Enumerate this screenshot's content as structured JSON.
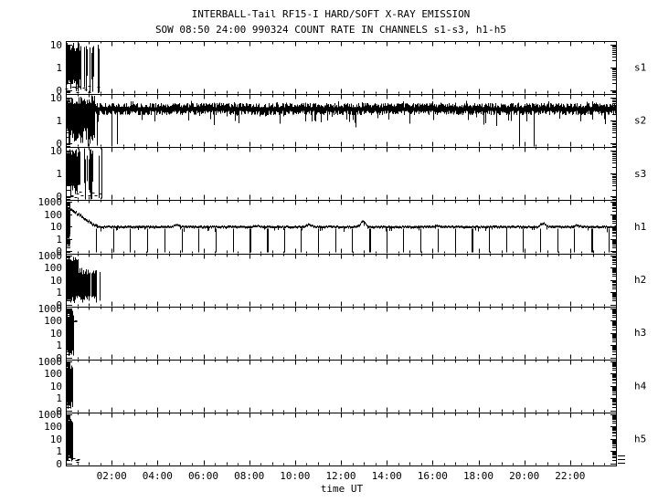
{
  "title": "INTERBALL-Tail RF15-I HARD/SOFT X-RAY EMISSION",
  "subtitle": "SOW 08:50 24:00 990324  COUNT RATE IN CHANNELS s1-s3, h1-h5",
  "colors": {
    "fg": "#000000",
    "bg": "#ffffff"
  },
  "chart_data": {
    "type": "line",
    "title": "INTERBALL-Tail RF15-I HARD/SOFT X-RAY EMISSION",
    "subtitle": "SOW 08:50 24:00 990324  COUNT RATE IN CHANNELS s1-s3, h1-h5",
    "y_scale": "log",
    "grid": false,
    "x": {
      "label": "time UT",
      "range_hours": [
        0,
        24
      ],
      "tick_hours": [
        2,
        4,
        6,
        8,
        10,
        12,
        14,
        16,
        18,
        20,
        22
      ],
      "tick_labels": [
        "02:00",
        "04:00",
        "06:00",
        "08:00",
        "10:00",
        "12:00",
        "14:00",
        "16:00",
        "18:00",
        "20:00",
        "22:00"
      ],
      "minor_tick_hours": 0.5
    },
    "panels": [
      {
        "channel": "s1",
        "group": "s",
        "seed": 11,
        "y_ticks": [
          {
            "v": 10,
            "label": "10"
          },
          {
            "v": 1,
            "label": "1"
          },
          {
            "v": 0.1,
            "label": "0"
          }
        ],
        "segments": [
          {
            "kind": "burst",
            "t0": 0,
            "t1": 0.62,
            "density": 1,
            "vtop": [
              5,
              14
            ],
            "vbot": [
              0.07,
              0.4
            ]
          },
          {
            "kind": "burst",
            "t0": 0.62,
            "t1": 0.78,
            "density": 0.25,
            "vtop": [
              5,
              14
            ],
            "vbot": [
              0.07,
              0.4
            ]
          },
          {
            "kind": "burst",
            "t0": 0.78,
            "t1": 1.25,
            "density": 0.72,
            "vtop": [
              4,
              14
            ],
            "vbot": [
              0.07,
              0.5
            ]
          },
          {
            "kind": "spikes",
            "t0": 1.25,
            "t1": 1.5,
            "n": 3,
            "vtop": [
              6,
              13
            ],
            "vbot": [
              0.07,
              0.2
            ]
          },
          {
            "kind": "marks",
            "t0": 0.05,
            "t1": 1.55,
            "n": 12,
            "v": 0.11
          }
        ]
      },
      {
        "channel": "s2",
        "group": "s",
        "seed": 22,
        "y_ticks": [
          {
            "v": 10,
            "label": "10"
          },
          {
            "v": 1,
            "label": "1"
          },
          {
            "v": 0.1,
            "label": "0"
          }
        ],
        "segments": [
          {
            "kind": "burst",
            "t0": 0,
            "t1": 1.28,
            "density": 0.9,
            "vtop": [
              5,
              13
            ],
            "vbot": [
              0.07,
              0.6
            ]
          },
          {
            "kind": "spikes",
            "t0": 1.3,
            "t1": 2.7,
            "n": 3,
            "vtop": [
              2.5,
              4
            ],
            "vbot": [
              0.07,
              0.12
            ]
          },
          {
            "kind": "band",
            "t0": 0,
            "t1": 24,
            "center": 3.2,
            "jit": 0.1,
            "thick": 0.17,
            "downrate": 0.12,
            "downdec": 0.55,
            "deeprate": 0.004,
            "uprate": 0.08,
            "updec": 0.12
          }
        ]
      },
      {
        "channel": "s3",
        "group": "s",
        "seed": 33,
        "y_ticks": [
          {
            "v": 10,
            "label": "10"
          },
          {
            "v": 1,
            "label": "1"
          },
          {
            "v": 0.1,
            "label": "0"
          }
        ],
        "segments": [
          {
            "kind": "burst",
            "t0": 0,
            "t1": 0.6,
            "density": 1,
            "vtop": [
              5,
              14
            ],
            "vbot": [
              0.07,
              0.4
            ]
          },
          {
            "kind": "burst",
            "t0": 0.6,
            "t1": 0.72,
            "density": 0.3,
            "vtop": [
              5,
              14
            ],
            "vbot": [
              0.07,
              0.4
            ]
          },
          {
            "kind": "burst",
            "t0": 0.72,
            "t1": 1.3,
            "density": 0.75,
            "vtop": [
              4,
              14
            ],
            "vbot": [
              0.07,
              0.5
            ]
          },
          {
            "kind": "spikes",
            "t0": 1.3,
            "t1": 1.55,
            "n": 2,
            "vtop": [
              6,
              13
            ],
            "vbot": [
              0.07,
              0.2
            ]
          },
          {
            "kind": "marks",
            "t0": 0.05,
            "t1": 1.6,
            "n": 10,
            "v": 0.11
          }
        ]
      },
      {
        "channel": "h1",
        "group": "h",
        "seed": 44,
        "y_ticks": [
          {
            "v": 1000,
            "label": "1000"
          },
          {
            "v": 100,
            "label": "100"
          },
          {
            "v": 10,
            "label": "10"
          },
          {
            "v": 1,
            "label": "1"
          },
          {
            "v": 0.1,
            "label": "0"
          }
        ],
        "segments": [
          {
            "kind": "burst",
            "t0": 0,
            "t1": 0.14,
            "density": 1,
            "vtop": [
              150,
              900
            ],
            "vbot": [
              0.3,
              3
            ]
          },
          {
            "kind": "decay",
            "t0": 0.14,
            "t1": 1.35,
            "v0": 280,
            "v1": 9.5,
            "noise": 0.1,
            "thick": 0.1
          },
          {
            "kind": "flat",
            "t0": 1.35,
            "t1": 24,
            "level": 9.5,
            "noise": 0.05,
            "thick": 0.08,
            "hairrate": 0.1,
            "hairdec": 0.3,
            "bumps": [
              [
                4.8,
                14
              ],
              [
                8.3,
                12
              ],
              [
                10.6,
                15
              ],
              [
                12.95,
                28
              ],
              [
                16.2,
                12
              ],
              [
                20.8,
                19
              ],
              [
                22.3,
                13
              ]
            ]
          },
          {
            "kind": "dropouts",
            "start": 1.32,
            "end": 24,
            "period": 0.745,
            "from": 7,
            "thick_at": [
              8.42,
              13.2,
              17.9,
              23.25
            ]
          }
        ]
      },
      {
        "channel": "h2",
        "group": "h",
        "seed": 55,
        "y_ticks": [
          {
            "v": 1000,
            "label": "1000"
          },
          {
            "v": 100,
            "label": "100"
          },
          {
            "v": 10,
            "label": "10"
          },
          {
            "v": 1,
            "label": "1"
          },
          {
            "v": 0.1,
            "label": "0"
          }
        ],
        "segments": [
          {
            "kind": "burst",
            "t0": 0,
            "t1": 0.52,
            "density": 1,
            "vtop": [
              300,
              1000
            ],
            "vbot": [
              0.13,
              0.5
            ]
          },
          {
            "kind": "burst",
            "t0": 0.52,
            "t1": 1.3,
            "density": 0.92,
            "vtop": [
              25,
              90
            ],
            "vbot": [
              0.13,
              0.6
            ]
          },
          {
            "kind": "spikes",
            "t0": 1.3,
            "t1": 1.5,
            "n": 2,
            "vtop": [
              20,
              50
            ],
            "vbot": [
              0.13,
              0.3
            ]
          }
        ]
      },
      {
        "channel": "h3",
        "group": "h",
        "seed": 66,
        "y_ticks": [
          {
            "v": 1000,
            "label": "1000"
          },
          {
            "v": 100,
            "label": "100"
          },
          {
            "v": 10,
            "label": "10"
          },
          {
            "v": 1,
            "label": "1"
          },
          {
            "v": 0.1,
            "label": "0"
          }
        ],
        "segments": [
          {
            "kind": "burst",
            "t0": 0,
            "t1": 0.3,
            "density": 1,
            "vtop": [
              200,
              1000
            ],
            "vbot": [
              0.13,
              0.5
            ]
          },
          {
            "kind": "marks",
            "t0": 0.3,
            "t1": 0.6,
            "n": 3,
            "v": 90
          }
        ]
      },
      {
        "channel": "h4",
        "group": "h",
        "seed": 77,
        "y_ticks": [
          {
            "v": 1000,
            "label": "1000"
          },
          {
            "v": 100,
            "label": "100"
          },
          {
            "v": 10,
            "label": "10"
          },
          {
            "v": 1,
            "label": "1"
          },
          {
            "v": 0.1,
            "label": "0"
          }
        ],
        "segments": [
          {
            "kind": "burst",
            "t0": 0,
            "t1": 0.28,
            "density": 1,
            "vtop": [
              200,
              1000
            ],
            "vbot": [
              0.13,
              0.5
            ]
          }
        ]
      },
      {
        "channel": "h5",
        "group": "h",
        "seed": 88,
        "y_ticks": [
          {
            "v": 1000,
            "label": "1000"
          },
          {
            "v": 100,
            "label": "100"
          },
          {
            "v": 10,
            "label": "10"
          },
          {
            "v": 1,
            "label": "1"
          },
          {
            "v": 0.1,
            "label": "0"
          }
        ],
        "segments": [
          {
            "kind": "burst",
            "t0": 0,
            "t1": 0.28,
            "density": 1,
            "vtop": [
              200,
              1000
            ],
            "vbot": [
              0.13,
              0.5
            ]
          },
          {
            "kind": "marks",
            "t0": 0.28,
            "t1": 0.55,
            "n": 5,
            "v": 0.2
          }
        ]
      }
    ]
  }
}
